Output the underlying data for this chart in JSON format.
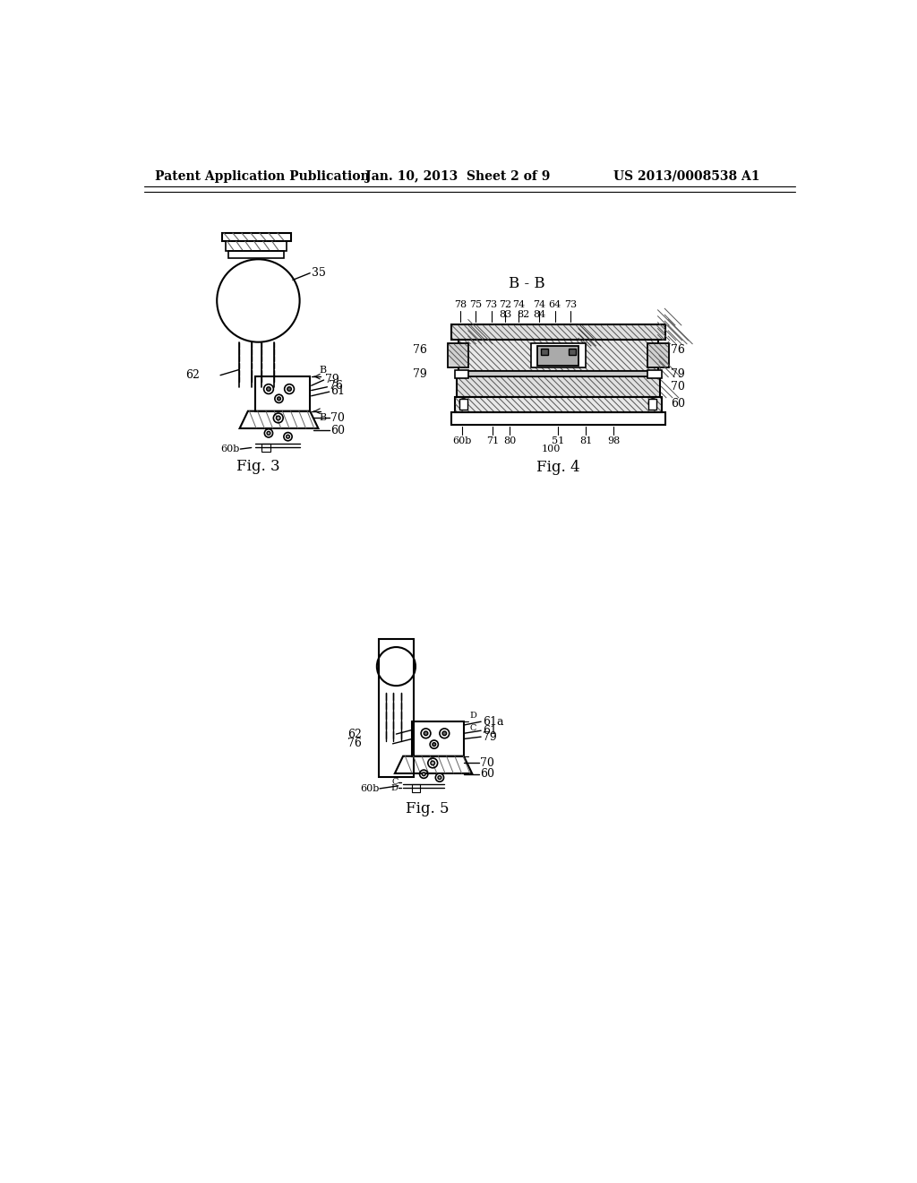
{
  "background_color": "#ffffff",
  "header_left": "Patent Application Publication",
  "header_center": "Jan. 10, 2013  Sheet 2 of 9",
  "header_right": "US 2013/0008538 A1",
  "fig3_label": "Fig. 3",
  "fig4_label": "Fig. 4",
  "fig5_label": "Fig. 5",
  "fig4_title": "B - B",
  "lc": "#000000"
}
